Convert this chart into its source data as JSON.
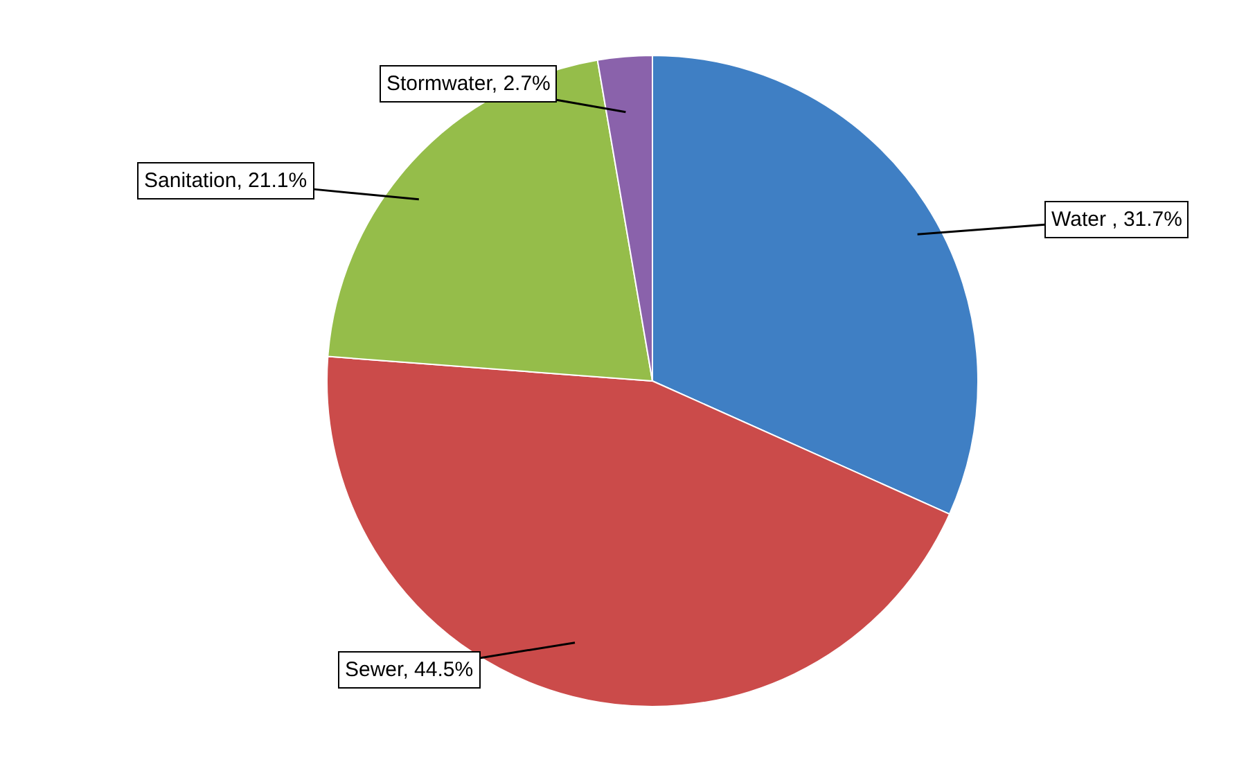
{
  "chart_data": {
    "type": "pie",
    "categories": [
      "Water ",
      "Sewer",
      "Sanitation",
      "Stormwater"
    ],
    "values": [
      31.7,
      44.5,
      21.1,
      2.7
    ],
    "colors": [
      "#3f7fc4",
      "#cb4b4a",
      "#95bd4a",
      "#8a62ab"
    ],
    "value_labels": [
      "31.7%",
      "44.5%",
      "21.1%",
      "2.7%"
    ],
    "legend": false
  }
}
